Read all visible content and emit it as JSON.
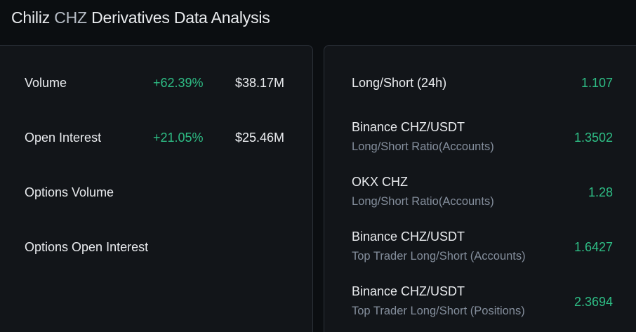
{
  "page": {
    "title_prefix": "Chiliz",
    "title_ticker": "CHZ",
    "title_suffix": "Derivatives Data Analysis"
  },
  "left_panel": {
    "rows": [
      {
        "label": "Volume",
        "change": "+62.39%",
        "amount": "$38.17M"
      },
      {
        "label": "Open Interest",
        "change": "+21.05%",
        "amount": "$25.46M"
      },
      {
        "label": "Options Volume",
        "change": "",
        "amount": ""
      },
      {
        "label": "Options Open Interest",
        "change": "",
        "amount": ""
      }
    ]
  },
  "right_panel": {
    "rows": [
      {
        "name": "Long/Short (24h)",
        "sub": "",
        "value": "1.107"
      },
      {
        "name": "Binance CHZ/USDT",
        "sub": "Long/Short Ratio(Accounts)",
        "value": "1.3502"
      },
      {
        "name": "OKX CHZ",
        "sub": "Long/Short Ratio(Accounts)",
        "value": "1.28"
      },
      {
        "name": "Binance CHZ/USDT",
        "sub": "Top Trader Long/Short (Accounts)",
        "value": "1.6427"
      },
      {
        "name": "Binance CHZ/USDT",
        "sub": "Top Trader Long/Short (Positions)",
        "value": "2.3694"
      }
    ]
  },
  "colors": {
    "background": "#0b0e11",
    "card": "#121519",
    "positive": "#2ebd85",
    "text_primary": "#eaecef",
    "text_secondary": "#848e9c"
  }
}
